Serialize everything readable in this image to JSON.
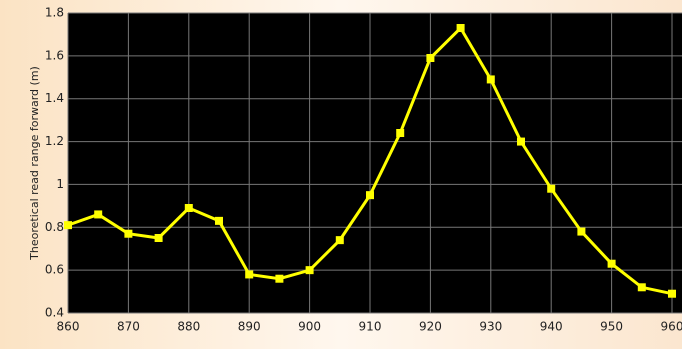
{
  "chart_data": {
    "type": "line",
    "y_label": "Theoretical read range forward (m)",
    "x": [
      860,
      865,
      870,
      875,
      880,
      885,
      890,
      895,
      900,
      905,
      910,
      915,
      920,
      925,
      930,
      935,
      940,
      945,
      950,
      955,
      960
    ],
    "series": [
      {
        "name": "read range",
        "color": "#ffff00",
        "values": [
          0.81,
          0.86,
          0.77,
          0.75,
          0.89,
          0.83,
          0.58,
          0.56,
          0.6,
          0.74,
          0.95,
          1.24,
          1.59,
          1.73,
          1.49,
          1.2,
          0.98,
          0.78,
          0.63,
          0.52,
          0.49
        ]
      }
    ],
    "xlim": [
      860,
      960
    ],
    "xticks": [
      860,
      870,
      880,
      890,
      900,
      910,
      920,
      930,
      940,
      950,
      960
    ],
    "ylim": [
      0.4,
      1.8
    ],
    "yticks": [
      0.4,
      0.6,
      0.8,
      1,
      1.2,
      1.4,
      1.6,
      1.8
    ],
    "grid": true
  }
}
